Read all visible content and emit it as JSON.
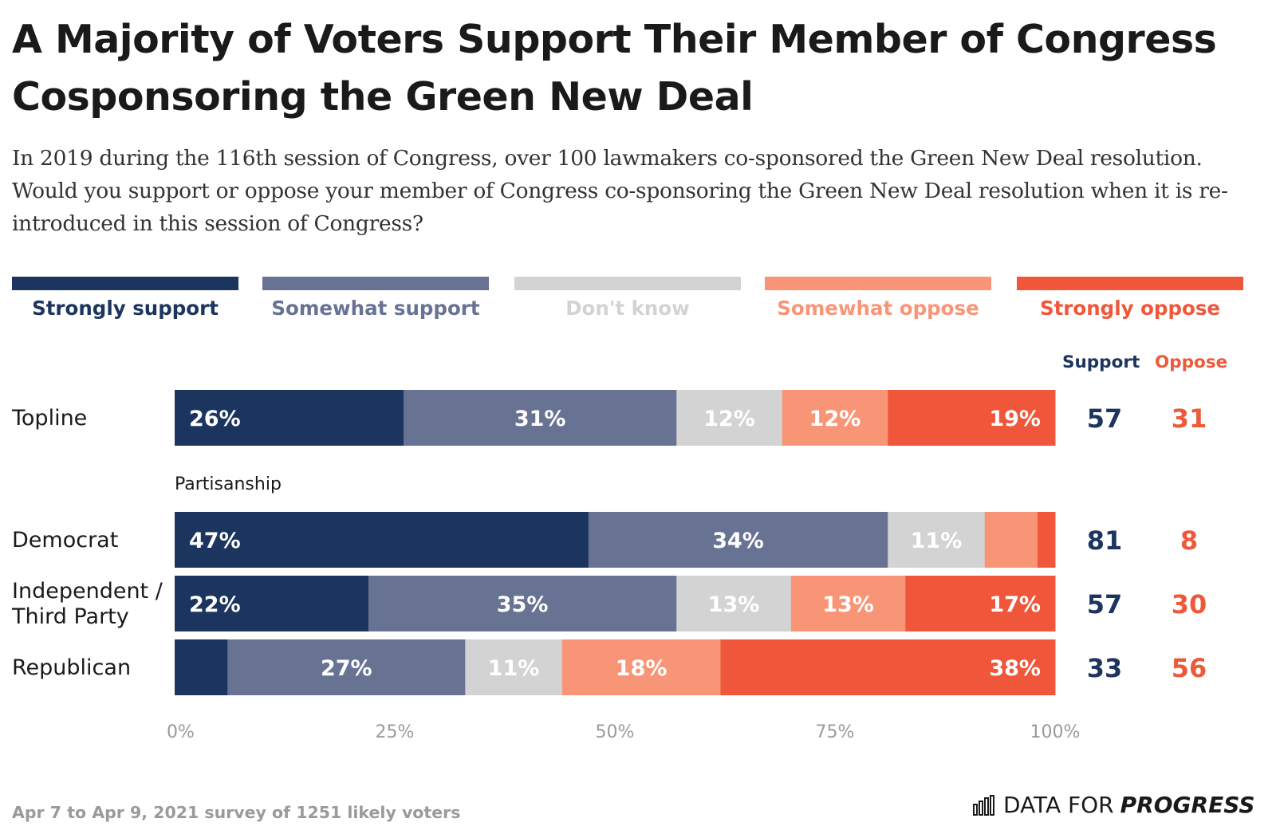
{
  "title": "A Majority of Voters Support Their Member of Congress Cosponsoring the Green New Deal",
  "subtitle": "In 2019 during the 116th session of Congress, over 100 lawmakers co-sponsored the Green New Deal resolution. Would you support or oppose your member of Congress co-sponsoring the Green New Deal resolution when it is re-introduced in this session of Congress?",
  "colors": {
    "strongly_support": "#1c355e",
    "somewhat_support": "#687394",
    "dont_know": "#d3d3d3",
    "somewhat_oppose": "#f99577",
    "strongly_oppose": "#f0573a",
    "support_text": "#1c355e",
    "oppose_text": "#ec5a3a"
  },
  "legend": [
    {
      "label": "Strongly support",
      "color": "#1c355e"
    },
    {
      "label": "Somewhat support",
      "color": "#687394"
    },
    {
      "label": "Don't know",
      "color": "#d3d3d3"
    },
    {
      "label": "Somewhat oppose",
      "color": "#f99577"
    },
    {
      "label": "Strongly oppose",
      "color": "#f0573a"
    }
  ],
  "columns": {
    "support": "Support",
    "oppose": "Oppose"
  },
  "chart_data": {
    "type": "bar",
    "orientation": "horizontal-stacked",
    "title": "A Majority of Voters Support Their Member of Congress Cosponsoring the Green New Deal",
    "categories": [
      "Topline",
      "Democrat",
      "Independent / Third Party",
      "Republican"
    ],
    "group_label": "Partisanship",
    "series": [
      {
        "name": "Strongly support",
        "values": [
          26,
          47,
          22,
          6
        ],
        "labels": [
          "26%",
          "47%",
          "22%",
          ""
        ]
      },
      {
        "name": "Somewhat support",
        "values": [
          31,
          34,
          35,
          27
        ],
        "labels": [
          "31%",
          "34%",
          "35%",
          "27%"
        ]
      },
      {
        "name": "Don't know",
        "values": [
          12,
          11,
          13,
          11
        ],
        "labels": [
          "12%",
          "11%",
          "13%",
          "11%"
        ]
      },
      {
        "name": "Somewhat oppose",
        "values": [
          12,
          6,
          13,
          18
        ],
        "labels": [
          "12%",
          "",
          "13%",
          "18%"
        ]
      },
      {
        "name": "Strongly oppose",
        "values": [
          19,
          2,
          17,
          38
        ],
        "labels": [
          "19%",
          "",
          "17%",
          "38%"
        ]
      }
    ],
    "support_totals": [
      "57",
      "81",
      "57",
      "33"
    ],
    "oppose_totals": [
      "31",
      "8",
      "30",
      "56"
    ],
    "xlim": [
      0,
      100
    ],
    "xticks": [
      "0%",
      "25%",
      "50%",
      "75%",
      "100%"
    ]
  },
  "footnote": "Apr 7 to Apr 9, 2021 survey of 1251 likely voters",
  "brand": {
    "regular": "DATA FOR",
    "bold": "PROGRESS"
  }
}
